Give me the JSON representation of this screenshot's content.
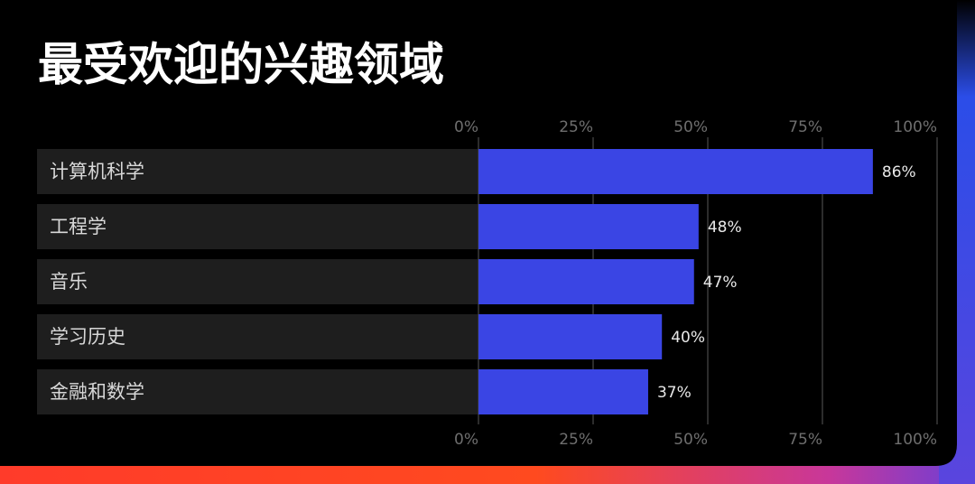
{
  "chart_data": {
    "type": "bar",
    "orientation": "horizontal",
    "title": "最受欢迎的兴趣领域",
    "categories": [
      "计算机科学",
      "工程学",
      "音乐",
      "学习历史",
      "金融和数学"
    ],
    "values": [
      86,
      48,
      47,
      40,
      37
    ],
    "value_labels": [
      "86%",
      "48%",
      "47%",
      "40%",
      "37%"
    ],
    "color": "#3a45e4",
    "xlim": [
      0,
      100
    ],
    "xticks": [
      {
        "value": 0,
        "label": "0%"
      },
      {
        "value": 25,
        "label": "25%"
      },
      {
        "value": 50,
        "label": "50%"
      },
      {
        "value": 75,
        "label": "75%"
      },
      {
        "value": 100,
        "label": "100%"
      }
    ],
    "grid": true
  }
}
